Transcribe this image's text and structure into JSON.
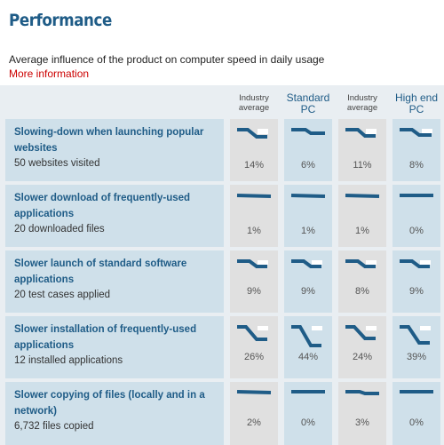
{
  "title": "Performance",
  "subtitle": "Average influence of the product on computer speed in daily usage",
  "more_info": "More information",
  "columns": [
    {
      "label": "Industry average",
      "kind": "industry"
    },
    {
      "label": "Standard PC",
      "kind": "pc"
    },
    {
      "label": "Industry average",
      "kind": "industry"
    },
    {
      "label": "High end PC",
      "kind": "pc"
    }
  ],
  "rows": [
    {
      "title": "Slowing-down when launching popular websites",
      "subtitle": "50 websites visited",
      "values": [
        "14%",
        "6%",
        "11%",
        "8%"
      ]
    },
    {
      "title": "Slower download of frequently-used applications",
      "subtitle": "20 downloaded files",
      "values": [
        "1%",
        "1%",
        "1%",
        "0%"
      ]
    },
    {
      "title": "Slower launch of standard software applications",
      "subtitle": "20 test cases applied",
      "values": [
        "9%",
        "9%",
        "8%",
        "9%"
      ]
    },
    {
      "title": "Slower installation of frequently-used applications",
      "subtitle": "12 installed applications",
      "values": [
        "26%",
        "44%",
        "24%",
        "39%"
      ]
    },
    {
      "title": "Slower copying of files (locally and in a network)",
      "subtitle": "6,732 files copied",
      "values": [
        "2%",
        "0%",
        "3%",
        "0%"
      ]
    }
  ],
  "colors": {
    "accent": "#1f5c87",
    "link": "#cc0000",
    "row_bg": "#cfe0ea",
    "industry_bg": "#e0e0e0"
  }
}
